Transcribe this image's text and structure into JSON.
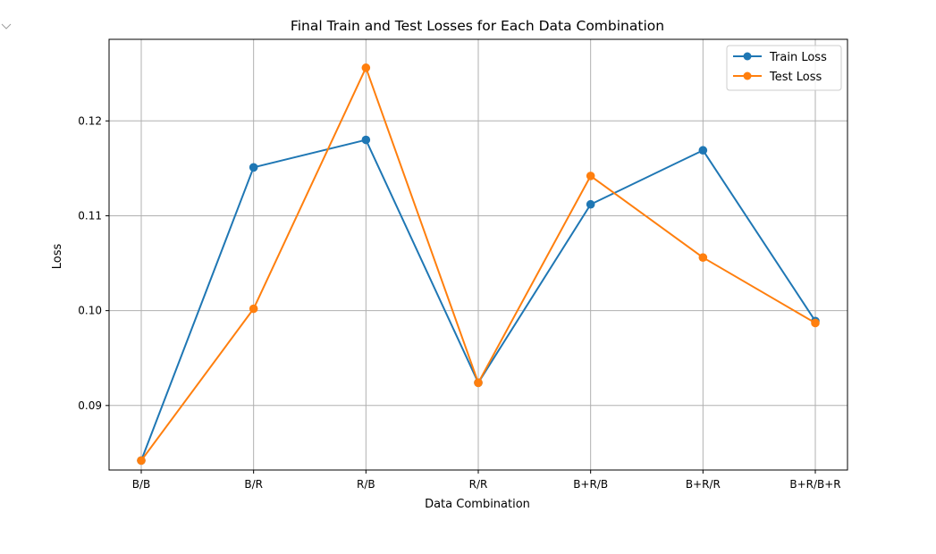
{
  "colors": {
    "train": "#1f77b4",
    "test": "#ff7f0e",
    "grid": "#b0b0b0",
    "axes": "#000000",
    "legend_border": "#cccccc"
  },
  "icons": {
    "cell_toggle": "chevron-down-icon"
  },
  "chart_data": {
    "type": "line",
    "title": "Final Train and Test Losses for Each Data Combination",
    "xlabel": "Data Combination",
    "ylabel": "Loss",
    "categories": [
      "B/B",
      "B/R",
      "R/B",
      "R/R",
      "B+R/B",
      "B+R/R",
      "B+R/B+R"
    ],
    "series": [
      {
        "name": "Train Loss",
        "color": "#1f77b4",
        "marker": "circle",
        "values": [
          0.0842,
          0.1151,
          0.118,
          0.0924,
          0.1112,
          0.1169,
          0.0989
        ]
      },
      {
        "name": "Test Loss",
        "color": "#ff7f0e",
        "marker": "circle",
        "values": [
          0.0842,
          0.1002,
          0.1256,
          0.0924,
          0.1142,
          0.1056,
          0.0987
        ]
      }
    ],
    "ylim": [
      0.0832,
      0.1286
    ],
    "yticks": [
      0.09,
      0.1,
      0.11,
      0.12
    ],
    "ytick_labels": [
      "0.09",
      "0.10",
      "0.11",
      "0.12"
    ],
    "grid": true,
    "legend_position": "top-right"
  }
}
